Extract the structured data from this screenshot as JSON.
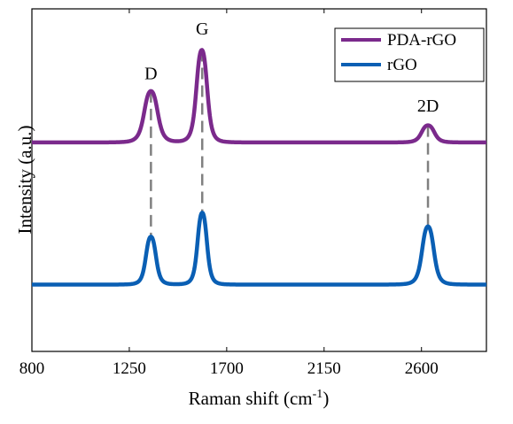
{
  "chart_data": {
    "type": "line",
    "xlabel": "Raman shift (cm",
    "xlabel_sup": "-1",
    "xlabel_end": ")",
    "ylabel": "Intensity (a.u.)",
    "xlim": [
      800,
      2900
    ],
    "ylim": [
      0,
      1
    ],
    "x_ticks": [
      800,
      1250,
      1700,
      2150,
      2600
    ],
    "x_tick_labels": [
      "800",
      "1250",
      "1700",
      "2150",
      "2600"
    ],
    "y_ticks_labeled": false,
    "grid": false,
    "legend_position": "top-right",
    "series": [
      {
        "name": "PDA-rGO",
        "color": "#7b2a8c",
        "baseline": 0.61,
        "peaks": [
          {
            "center": 1350,
            "height": 0.15,
            "width": 40
          },
          {
            "center": 1585,
            "height": 0.27,
            "width": 32
          },
          {
            "center": 2630,
            "height": 0.05,
            "width": 38
          }
        ]
      },
      {
        "name": "rGO",
        "color": "#0a5fb4",
        "baseline": 0.195,
        "peaks": [
          {
            "center": 1350,
            "height": 0.14,
            "width": 30
          },
          {
            "center": 1587,
            "height": 0.21,
            "width": 28
          },
          {
            "center": 2630,
            "height": 0.17,
            "width": 35
          }
        ]
      }
    ],
    "annotations": [
      {
        "text": "D",
        "x": 1350,
        "y": 0.795
      },
      {
        "text": "G",
        "x": 1587,
        "y": 0.925
      },
      {
        "text": "2D",
        "x": 2630,
        "y": 0.7
      }
    ],
    "guides": [
      {
        "x": 1350,
        "y_top": 0.76,
        "y_bottom": 0.335
      },
      {
        "x": 1587,
        "y_top": 0.88,
        "y_bottom": 0.405
      },
      {
        "x": 2630,
        "y_top": 0.66,
        "y_bottom": 0.365
      }
    ],
    "guide_color": "#808080"
  }
}
